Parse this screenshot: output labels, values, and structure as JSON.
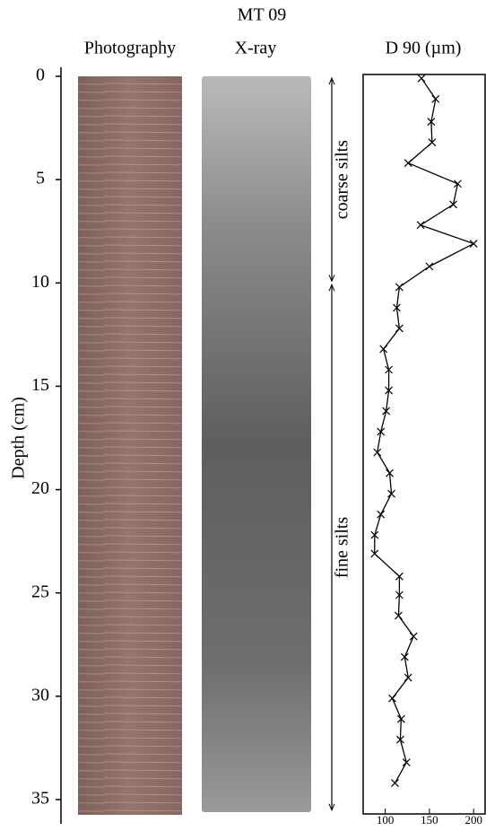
{
  "chart_data": {
    "type": "line",
    "title": "MT 09",
    "panel_labels": [
      "Photography",
      "X-ray"
    ],
    "x_label": "D 90 (µm)",
    "y_label": "Depth (cm)",
    "depth": [
      0.1,
      1.1,
      2.2,
      3.2,
      4.2,
      5.2,
      6.2,
      7.2,
      8.1,
      9.2,
      10.2,
      11.2,
      12.2,
      13.2,
      14.2,
      15.2,
      16.2,
      17.2,
      18.2,
      19.2,
      20.2,
      21.2,
      22.2,
      23.1,
      24.2,
      25.1,
      26.1,
      27.1,
      28.1,
      29.1,
      30.1,
      31.1,
      32.1,
      33.2,
      34.2
    ],
    "values": [
      141,
      157,
      152,
      153,
      126,
      182,
      177,
      140,
      200,
      150,
      116,
      113,
      116,
      98,
      104,
      104,
      101,
      95,
      91,
      105,
      107,
      95,
      88,
      88,
      116,
      116,
      115,
      132,
      122,
      126,
      108,
      118,
      117,
      124,
      111
    ],
    "color": "#000000",
    "xlim": [
      75,
      213
    ],
    "xticks": [
      100,
      150,
      200
    ],
    "ylim": [
      -0.5,
      36
    ],
    "yticks": [
      0,
      5,
      10,
      15,
      20,
      25,
      30,
      35
    ],
    "zones": [
      {
        "label": "coarse silts",
        "from": 0,
        "to": 10
      },
      {
        "label": "fine silts",
        "from": 10,
        "to": 35.6
      }
    ]
  }
}
